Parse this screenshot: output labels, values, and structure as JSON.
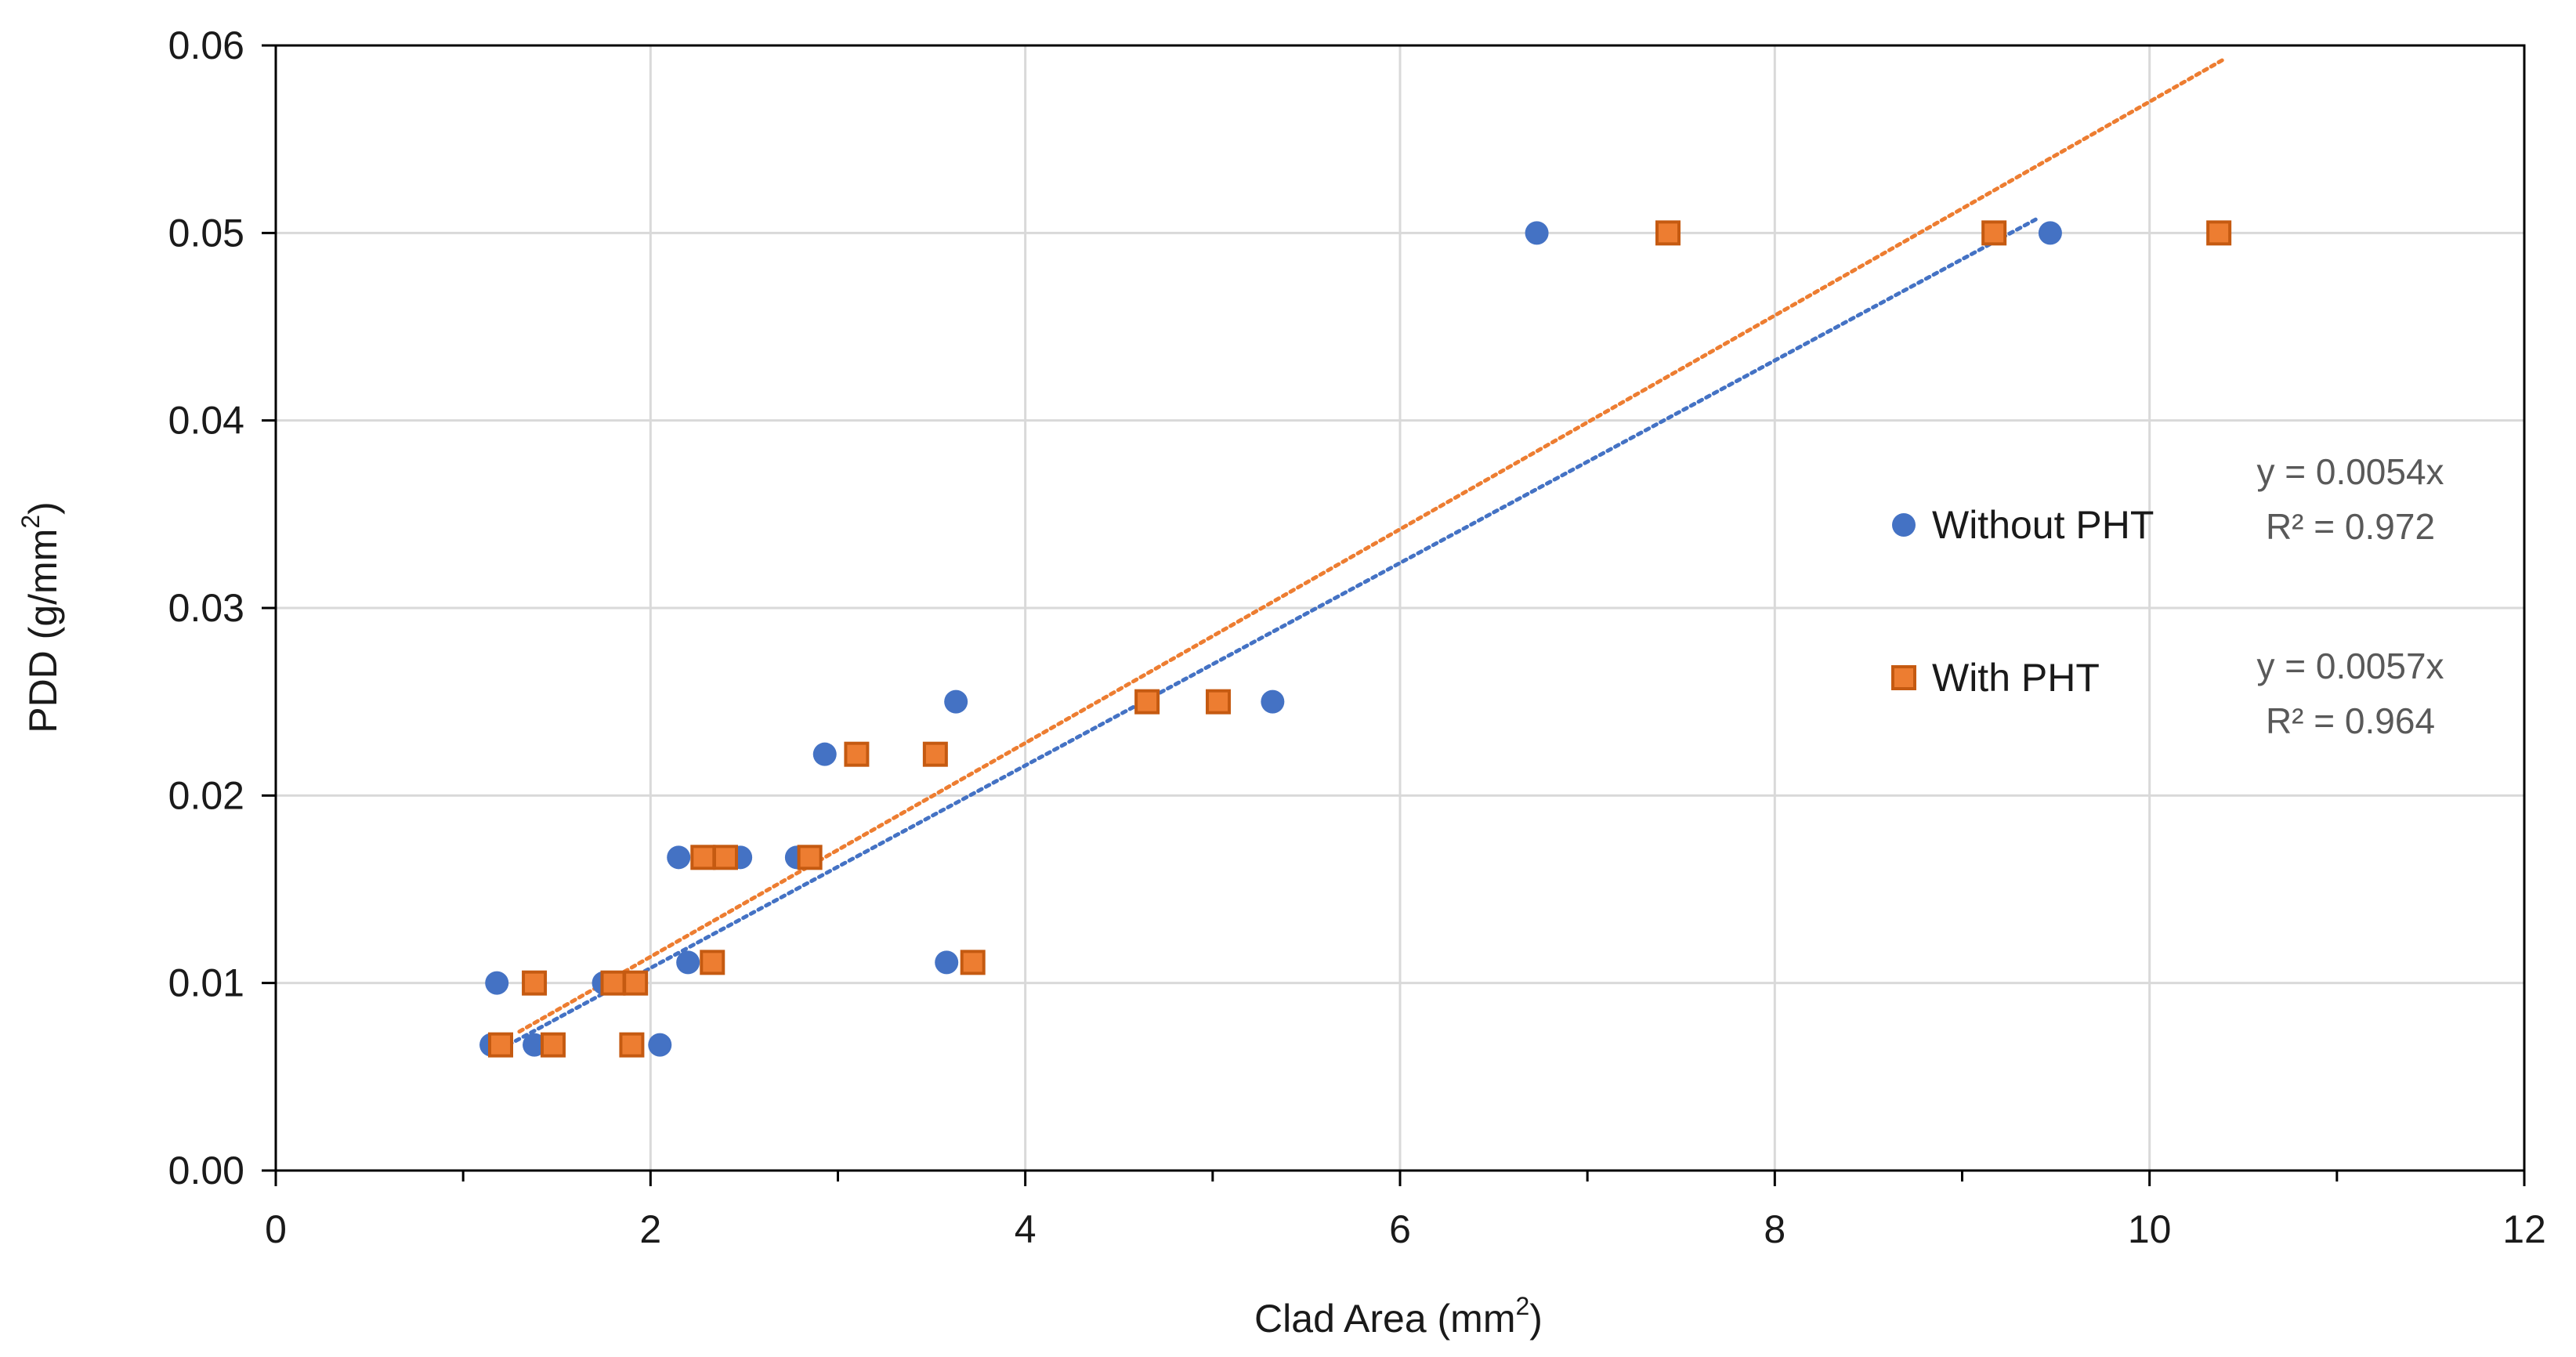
{
  "chart_data": {
    "type": "scatter",
    "title": "",
    "xlabel": {
      "prefix": "Clad Area (mm",
      "sup": "2",
      "suffix": ")"
    },
    "ylabel": {
      "prefix": "PDD (g/mm",
      "sup": "2",
      "suffix": ")"
    },
    "xlim": [
      0,
      12
    ],
    "ylim": [
      0,
      0.06
    ],
    "x_ticks": [
      0,
      2,
      4,
      6,
      8,
      10,
      12
    ],
    "x_minor_ticks": [
      1,
      3,
      5,
      7,
      9,
      11
    ],
    "y_ticks": [
      0.0,
      0.01,
      0.02,
      0.03,
      0.04,
      0.05,
      0.06
    ],
    "x_tick_labels": [
      "0",
      "2",
      "4",
      "6",
      "8",
      "10",
      "12"
    ],
    "y_tick_labels": [
      "0.00",
      "0.01",
      "0.02",
      "0.03",
      "0.04",
      "0.05",
      "0.06"
    ],
    "grid": true,
    "legend_position": "right",
    "series": [
      {
        "name": "Without PHT",
        "marker": "circle",
        "color": "#4472C4",
        "points": [
          [
            1.15,
            0.0067
          ],
          [
            1.18,
            0.01
          ],
          [
            1.38,
            0.0067
          ],
          [
            1.75,
            0.01
          ],
          [
            2.05,
            0.0067
          ],
          [
            2.15,
            0.0167
          ],
          [
            2.2,
            0.0111
          ],
          [
            2.48,
            0.0167
          ],
          [
            2.78,
            0.0167
          ],
          [
            2.93,
            0.0222
          ],
          [
            3.58,
            0.0111
          ],
          [
            3.63,
            0.025
          ],
          [
            5.32,
            0.025
          ],
          [
            6.73,
            0.05
          ],
          [
            9.47,
            0.05
          ]
        ],
        "trendline": {
          "slope": 0.0054,
          "x_range": [
            1.2,
            9.4
          ],
          "equation": "y = 0.0054x",
          "r2": "R² = 0.972"
        }
      },
      {
        "name": "With PHT",
        "marker": "square",
        "color": "#ED7D31",
        "stroke": "#C55A11",
        "points": [
          [
            1.2,
            0.0067
          ],
          [
            1.38,
            0.01
          ],
          [
            1.48,
            0.0067
          ],
          [
            1.8,
            0.01
          ],
          [
            1.9,
            0.0067
          ],
          [
            1.92,
            0.01
          ],
          [
            2.28,
            0.0167
          ],
          [
            2.33,
            0.0111
          ],
          [
            2.4,
            0.0167
          ],
          [
            2.85,
            0.0167
          ],
          [
            3.1,
            0.0222
          ],
          [
            3.52,
            0.0222
          ],
          [
            3.72,
            0.0111
          ],
          [
            4.65,
            0.025
          ],
          [
            5.03,
            0.025
          ],
          [
            7.43,
            0.05
          ],
          [
            9.17,
            0.05
          ],
          [
            10.37,
            0.05
          ]
        ],
        "trendline": {
          "slope": 0.0057,
          "x_range": [
            1.3,
            10.4
          ],
          "equation": "y = 0.0057x",
          "r2": "R² = 0.964"
        }
      }
    ]
  }
}
